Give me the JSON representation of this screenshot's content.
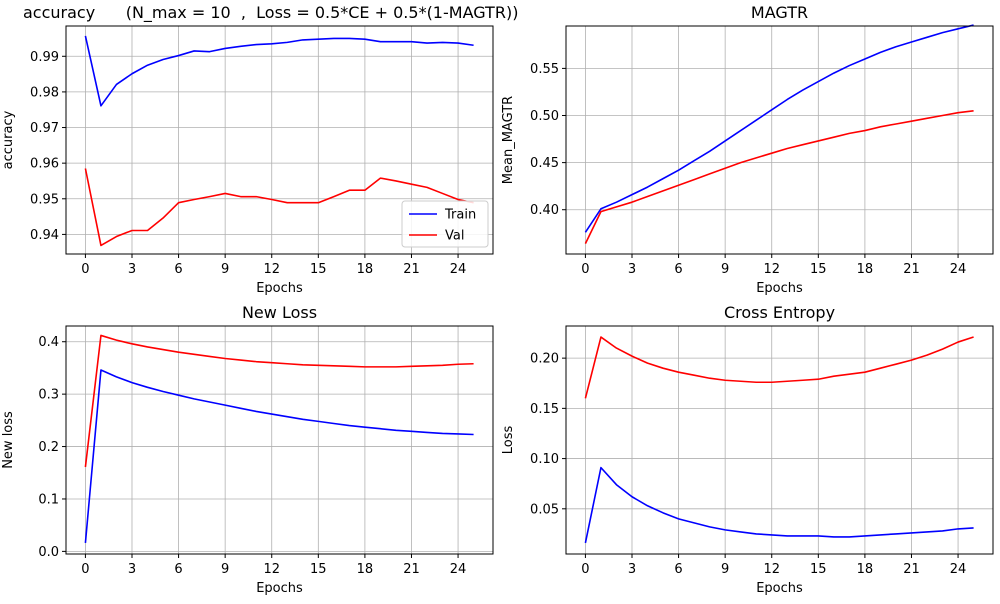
{
  "colors": {
    "train": "#0000ff",
    "val": "#ff0000",
    "grid": "#b0b0b0",
    "axis": "#000000"
  },
  "chart_data": [
    {
      "type": "line",
      "title": "accuracy      (N_max = 10  ,  Loss = 0.5*CE + 0.5*(1-MAGTR))",
      "xlabel": "Epochs",
      "ylabel": "accuracy",
      "xlim": [
        -1.25,
        26.25
      ],
      "ylim": [
        0.9345,
        0.9985
      ],
      "xticks": [
        0,
        3,
        6,
        9,
        12,
        15,
        18,
        21,
        24
      ],
      "yticks": [
        0.94,
        0.95,
        0.96,
        0.97,
        0.98,
        0.99
      ],
      "ytick_labels": [
        "0.94",
        "0.95",
        "0.96",
        "0.97",
        "0.98",
        "0.99"
      ],
      "grid": true,
      "legend": {
        "position": "lower-right",
        "entries": [
          "Train",
          "Val"
        ]
      },
      "x": [
        0,
        1,
        2,
        3,
        4,
        5,
        6,
        7,
        8,
        9,
        10,
        11,
        12,
        13,
        14,
        15,
        16,
        17,
        18,
        19,
        20,
        21,
        22,
        23,
        24,
        25
      ],
      "series": [
        {
          "name": "Train",
          "color": "#0000ff",
          "values": [
            0.9957,
            0.9761,
            0.9821,
            0.9851,
            0.9875,
            0.9891,
            0.9902,
            0.9915,
            0.9913,
            0.9922,
            0.9928,
            0.9933,
            0.9935,
            0.9939,
            0.9946,
            0.9948,
            0.995,
            0.995,
            0.9948,
            0.9941,
            0.9941,
            0.9941,
            0.9937,
            0.9939,
            0.9937,
            0.9931
          ]
        },
        {
          "name": "Val",
          "color": "#ff0000",
          "values": [
            0.9585,
            0.9369,
            0.9394,
            0.9411,
            0.9411,
            0.9446,
            0.9489,
            0.9498,
            0.9506,
            0.9515,
            0.9506,
            0.9506,
            0.9498,
            0.9489,
            0.9489,
            0.9489,
            0.9506,
            0.9524,
            0.9524,
            0.9558,
            0.955,
            0.9541,
            0.9532,
            0.9515,
            0.9498,
            0.9489
          ]
        }
      ]
    },
    {
      "type": "line",
      "title": "MAGTR",
      "xlabel": "Epochs",
      "ylabel": "Mean_MAGTR",
      "xlim": [
        -1.25,
        26.25
      ],
      "ylim": [
        0.353,
        0.595
      ],
      "xticks": [
        0,
        3,
        6,
        9,
        12,
        15,
        18,
        21,
        24
      ],
      "yticks": [
        0.4,
        0.45,
        0.5,
        0.55
      ],
      "ytick_labels": [
        "0.40",
        "0.45",
        "0.50",
        "0.55"
      ],
      "grid": true,
      "x": [
        0,
        1,
        2,
        3,
        4,
        5,
        6,
        7,
        8,
        9,
        10,
        11,
        12,
        13,
        14,
        15,
        16,
        17,
        18,
        19,
        20,
        21,
        22,
        23,
        24,
        25
      ],
      "series": [
        {
          "name": "Train",
          "color": "#0000ff",
          "values": [
            0.376,
            0.401,
            0.408,
            0.416,
            0.424,
            0.433,
            0.442,
            0.452,
            0.462,
            0.473,
            0.484,
            0.495,
            0.506,
            0.517,
            0.527,
            0.536,
            0.545,
            0.553,
            0.56,
            0.567,
            0.573,
            0.578,
            0.583,
            0.588,
            0.592,
            0.596
          ]
        },
        {
          "name": "Val",
          "color": "#ff0000",
          "values": [
            0.364,
            0.398,
            0.403,
            0.408,
            0.414,
            0.42,
            0.426,
            0.432,
            0.438,
            0.444,
            0.45,
            0.455,
            0.46,
            0.465,
            0.469,
            0.473,
            0.477,
            0.481,
            0.484,
            0.488,
            0.491,
            0.494,
            0.497,
            0.5,
            0.503,
            0.505
          ]
        }
      ]
    },
    {
      "type": "line",
      "title": "New Loss",
      "xlabel": "Epochs",
      "ylabel": "New loss",
      "xlim": [
        -1.25,
        26.25
      ],
      "ylim": [
        -0.005,
        0.43
      ],
      "xticks": [
        0,
        3,
        6,
        9,
        12,
        15,
        18,
        21,
        24
      ],
      "yticks": [
        0.0,
        0.1,
        0.2,
        0.3,
        0.4
      ],
      "ytick_labels": [
        "0.0",
        "0.1",
        "0.2",
        "0.3",
        "0.4"
      ],
      "grid": true,
      "x": [
        0,
        1,
        2,
        3,
        4,
        5,
        6,
        7,
        8,
        9,
        10,
        11,
        12,
        13,
        14,
        15,
        16,
        17,
        18,
        19,
        20,
        21,
        22,
        23,
        24,
        25
      ],
      "series": [
        {
          "name": "Train",
          "color": "#0000ff",
          "values": [
            0.016,
            0.346,
            0.333,
            0.322,
            0.313,
            0.305,
            0.298,
            0.291,
            0.285,
            0.279,
            0.273,
            0.267,
            0.262,
            0.257,
            0.252,
            0.248,
            0.244,
            0.24,
            0.237,
            0.234,
            0.231,
            0.229,
            0.227,
            0.225,
            0.224,
            0.223
          ]
        },
        {
          "name": "Val",
          "color": "#ff0000",
          "values": [
            0.161,
            0.412,
            0.403,
            0.396,
            0.39,
            0.385,
            0.38,
            0.376,
            0.372,
            0.368,
            0.365,
            0.362,
            0.36,
            0.358,
            0.356,
            0.355,
            0.354,
            0.353,
            0.352,
            0.352,
            0.352,
            0.353,
            0.354,
            0.355,
            0.357,
            0.358
          ]
        }
      ]
    },
    {
      "type": "line",
      "title": "Cross Entropy",
      "xlabel": "Epochs",
      "ylabel": "Loss",
      "xlim": [
        -1.25,
        26.25
      ],
      "ylim": [
        0.005,
        0.232
      ],
      "xticks": [
        0,
        3,
        6,
        9,
        12,
        15,
        18,
        21,
        24
      ],
      "yticks": [
        0.05,
        0.1,
        0.15,
        0.2
      ],
      "ytick_labels": [
        "0.05",
        "0.10",
        "0.15",
        "0.20"
      ],
      "grid": true,
      "x": [
        0,
        1,
        2,
        3,
        4,
        5,
        6,
        7,
        8,
        9,
        10,
        11,
        12,
        13,
        14,
        15,
        16,
        17,
        18,
        19,
        20,
        21,
        22,
        23,
        24,
        25
      ],
      "series": [
        {
          "name": "Train",
          "color": "#0000ff",
          "values": [
            0.016,
            0.091,
            0.074,
            0.062,
            0.053,
            0.046,
            0.04,
            0.036,
            0.032,
            0.029,
            0.027,
            0.025,
            0.024,
            0.023,
            0.023,
            0.023,
            0.022,
            0.022,
            0.023,
            0.024,
            0.025,
            0.026,
            0.027,
            0.028,
            0.03,
            0.031
          ]
        },
        {
          "name": "Val",
          "color": "#ff0000",
          "values": [
            0.16,
            0.221,
            0.21,
            0.202,
            0.195,
            0.19,
            0.186,
            0.183,
            0.18,
            0.178,
            0.177,
            0.176,
            0.176,
            0.177,
            0.178,
            0.179,
            0.182,
            0.184,
            0.186,
            0.19,
            0.194,
            0.198,
            0.203,
            0.209,
            0.216,
            0.221
          ]
        }
      ]
    }
  ]
}
